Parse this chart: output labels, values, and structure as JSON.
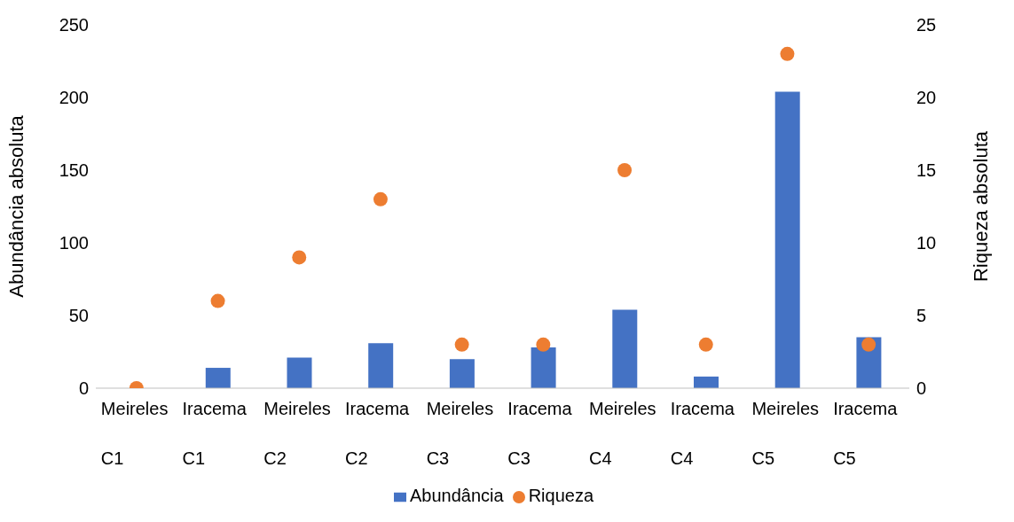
{
  "chart_data": {
    "type": "bar",
    "ylabel": "Abundância absoluta",
    "y2label": "Riqueza absoluta",
    "categories": [
      "Meireles\nC1",
      "Iracema\nC1",
      "Meireles\nC2",
      "Iracema\nC2",
      "Meireles\nC3",
      "Iracema\nC3",
      "Meireles\nC4",
      "Iracema\nC4",
      "Meireles\nC5",
      "Iracema\nC5"
    ],
    "series": [
      {
        "name": "Abundância",
        "color": "#4472c4",
        "values": [
          0,
          14,
          21,
          31,
          20,
          28,
          54,
          8,
          204,
          35
        ]
      },
      {
        "name": "Riqueza",
        "type": "scatter",
        "axis": "y2",
        "color": "#ed7d31",
        "values": [
          0,
          6,
          9,
          13,
          3,
          3,
          15,
          3,
          23,
          3
        ]
      }
    ],
    "ylim": [
      0,
      250
    ],
    "yticks": [
      0,
      50,
      100,
      150,
      200,
      250
    ],
    "y2lim": [
      0,
      25
    ],
    "y2ticks": [
      0,
      5,
      10,
      15,
      20,
      25
    ],
    "grid": false,
    "legend": "bottom",
    "marker": "circle"
  }
}
